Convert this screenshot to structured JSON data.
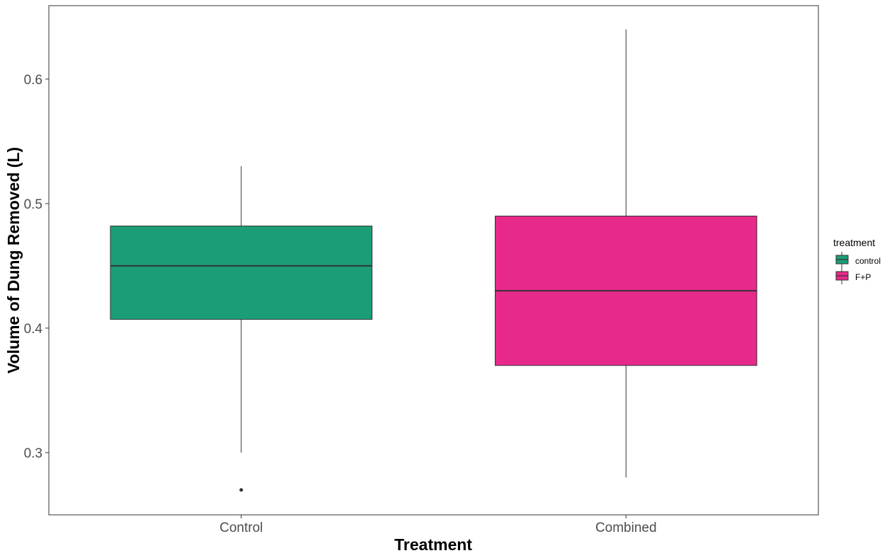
{
  "chart_data": {
    "type": "boxplot",
    "xlabel": "Treatment",
    "ylabel": "Volume of Dung Removed (L)",
    "ylim": [
      0.25,
      0.659
    ],
    "yticks": [
      0.3,
      0.4,
      0.5,
      0.6
    ],
    "ytick_labels": [
      "0.3",
      "0.4",
      "0.5",
      "0.6"
    ],
    "grid": false,
    "legend": {
      "title": "treatment",
      "placement": "right",
      "entries": [
        {
          "label": "control",
          "color": "#1b9e77"
        },
        {
          "label": "F+P",
          "color": "#e7298a"
        }
      ]
    },
    "categories": [
      "Control",
      "Combined"
    ],
    "boxes": [
      {
        "category": "Control",
        "group": "control",
        "color": "#1b9e77",
        "whisker_low": 0.3,
        "q1": 0.407,
        "median": 0.45,
        "q3": 0.482,
        "whisker_high": 0.53,
        "outliers": [
          0.27
        ]
      },
      {
        "category": "Combined",
        "group": "F+P",
        "color": "#e7298a",
        "whisker_low": 0.28,
        "q1": 0.37,
        "median": 0.43,
        "q3": 0.49,
        "whisker_high": 0.64,
        "outliers": []
      }
    ]
  }
}
